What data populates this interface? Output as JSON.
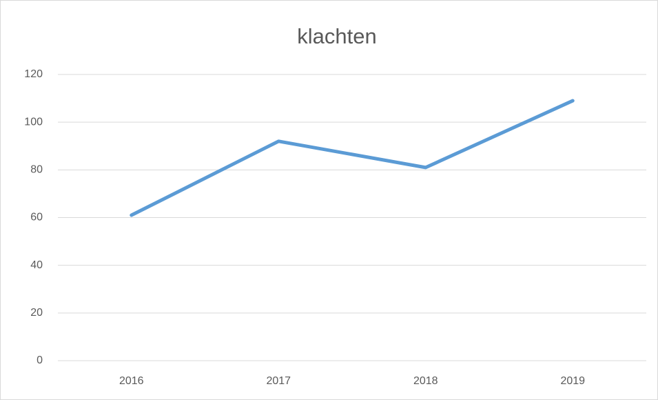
{
  "chart_data": {
    "type": "line",
    "title": "klachten",
    "categories": [
      "2016",
      "2017",
      "2018",
      "2019"
    ],
    "values": [
      61,
      92,
      81,
      109
    ],
    "color": "#5b9bd5",
    "ylim": [
      0,
      120
    ],
    "yticks": [
      0,
      20,
      40,
      60,
      80,
      100,
      120
    ],
    "grid": true
  }
}
